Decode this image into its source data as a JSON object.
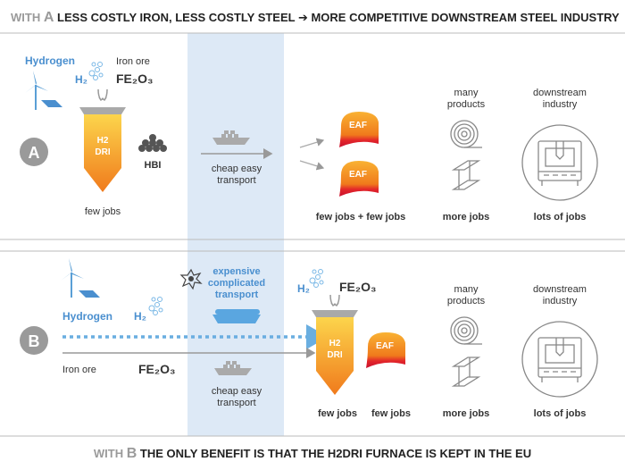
{
  "header": {
    "lead": "WITH",
    "letter": "A",
    "title": "LESS COSTLY IRON, LESS COSTLY STEEL ➔ MORE COMPETITIVE DOWNSTREAM STEEL INDUSTRY"
  },
  "scenario_a": {
    "badge": "A",
    "hydrogen": "Hydrogen",
    "h2": "H₂",
    "iron_ore": "Iron ore",
    "fe2o3": "FE₂O₃",
    "furnace": [
      "H2",
      "DRI"
    ],
    "hbi": "HBI",
    "furnace_jobs": "few jobs",
    "transport": [
      "cheap easy",
      "transport"
    ],
    "eaf": [
      "EAF",
      "EAF"
    ],
    "eaf_jobs": "few jobs + few jobs",
    "products": [
      "many",
      "products"
    ],
    "products_jobs": "more jobs",
    "downstream": [
      "downstream",
      "industry"
    ],
    "downstream_jobs": "lots of jobs"
  },
  "scenario_b": {
    "badge": "B",
    "hydrogen": "Hydrogen",
    "h2_left": "H₂",
    "iron_ore": "Iron ore",
    "fe2o3_left": "FE₂O₃",
    "expensive_transport": [
      "expensive",
      "complicated",
      "transport"
    ],
    "cheap_transport": [
      "cheap easy",
      "transport"
    ],
    "h2_right": "H₂",
    "fe2o3_right": "FE₂O₃",
    "furnace": [
      "H2",
      "DRI"
    ],
    "eaf": "EAF",
    "furnace_jobs": "few jobs",
    "eaf_jobs": "few jobs",
    "products": [
      "many",
      "products"
    ],
    "products_jobs": "more jobs",
    "downstream": [
      "downstream",
      "industry"
    ],
    "downstream_jobs": "lots of jobs"
  },
  "footer": {
    "lead": "WITH",
    "letter": "B",
    "text": "THE ONLY BENEFIT IS THAT THE H2DRI FURNACE IS KEPT IN THE EU"
  }
}
